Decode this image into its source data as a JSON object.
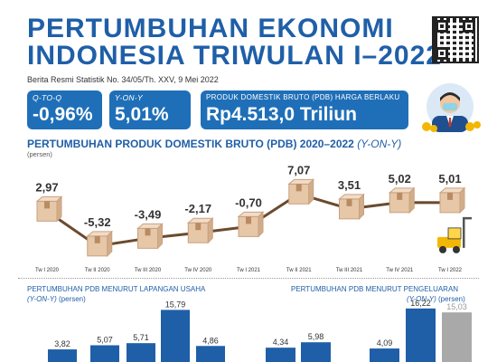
{
  "header": {
    "title_line1": "PERTUMBUHAN EKONOMI",
    "title_line2": "INDONESIA TRIWULAN I–2022",
    "subtitle": "Berita Resmi Statistik No. 34/05/Th. XXV, 9 Mei 2022"
  },
  "stats": {
    "qtoq_label": "Q-TO-Q",
    "qtoq_value": "-0,96%",
    "yony_label": "Y-ON-Y",
    "yony_value": "5,01%",
    "pdb_label": "PRODUK DOMESTIK BRUTO (PDB) HARGA BERLAKU",
    "pdb_value": "Rp4.513,0 Triliun"
  },
  "main": {
    "title": "PERTUMBUHAN PRODUK DOMESTIK BRUTO (PDB) 2020–2022",
    "title_suffix": "(Y-ON-Y)",
    "unit": "(persen)"
  },
  "left_section": {
    "title": "PERTUMBUHAN PDB MENURUT LAPANGAN USAHA",
    "unit_italic": "(Y-ON-Y)",
    "unit": "(persen)"
  },
  "right_section": {
    "title": "PERTUMBUHAN PDB MENURUT PENGELUARAN",
    "unit_italic": "(Y-ON-Y)",
    "unit": "(persen)"
  },
  "colors": {
    "primary": "#1f6fb8",
    "line": "#6b4a2e",
    "box": "#e6c7a8",
    "bar_blue": "#1f5fa8",
    "bar_gray": "#a9a9a9",
    "forklift": "#f2b705"
  },
  "chart_data": [
    {
      "type": "line",
      "title": "PERTUMBUHAN PRODUK DOMESTIK BRUTO (PDB) 2020–2022 (Y-ON-Y)",
      "ylabel": "(persen)",
      "categories": [
        "Tw I 2020",
        "Tw II 2020",
        "Tw III 2020",
        "Tw IV 2020",
        "Tw I 2021",
        "Tw II 2021",
        "Tw III 2021",
        "Tw IV 2021",
        "Tw I 2022"
      ],
      "labels": [
        "2,97",
        "-5,32",
        "-3,49",
        "-2,17",
        "-0,70",
        "7,07",
        "3,51",
        "5,02",
        "5,01"
      ],
      "values": [
        2.97,
        -5.32,
        -3.49,
        -2.17,
        -0.7,
        7.07,
        3.51,
        5.02,
        5.01
      ],
      "ylim": [
        -6,
        8
      ]
    },
    {
      "type": "bar",
      "title": "PERTUMBUHAN PDB MENURUT LAPANGAN USAHA",
      "labels": [
        "3,82",
        "5,07",
        "5,71",
        "15,79",
        "4,86"
      ],
      "values": [
        3.82,
        5.07,
        5.71,
        15.79,
        4.86
      ],
      "highlight_index": 3
    },
    {
      "type": "bar",
      "title": "PERTUMBUHAN PDB MENURUT PENGELUARAN",
      "labels": [
        "4,34",
        "5,98",
        "4,09",
        "16,22",
        "15,03"
      ],
      "values": [
        4.34,
        5.98,
        4.09,
        16.22,
        15.03
      ],
      "highlight_index": 3,
      "gray_index": 4
    }
  ]
}
